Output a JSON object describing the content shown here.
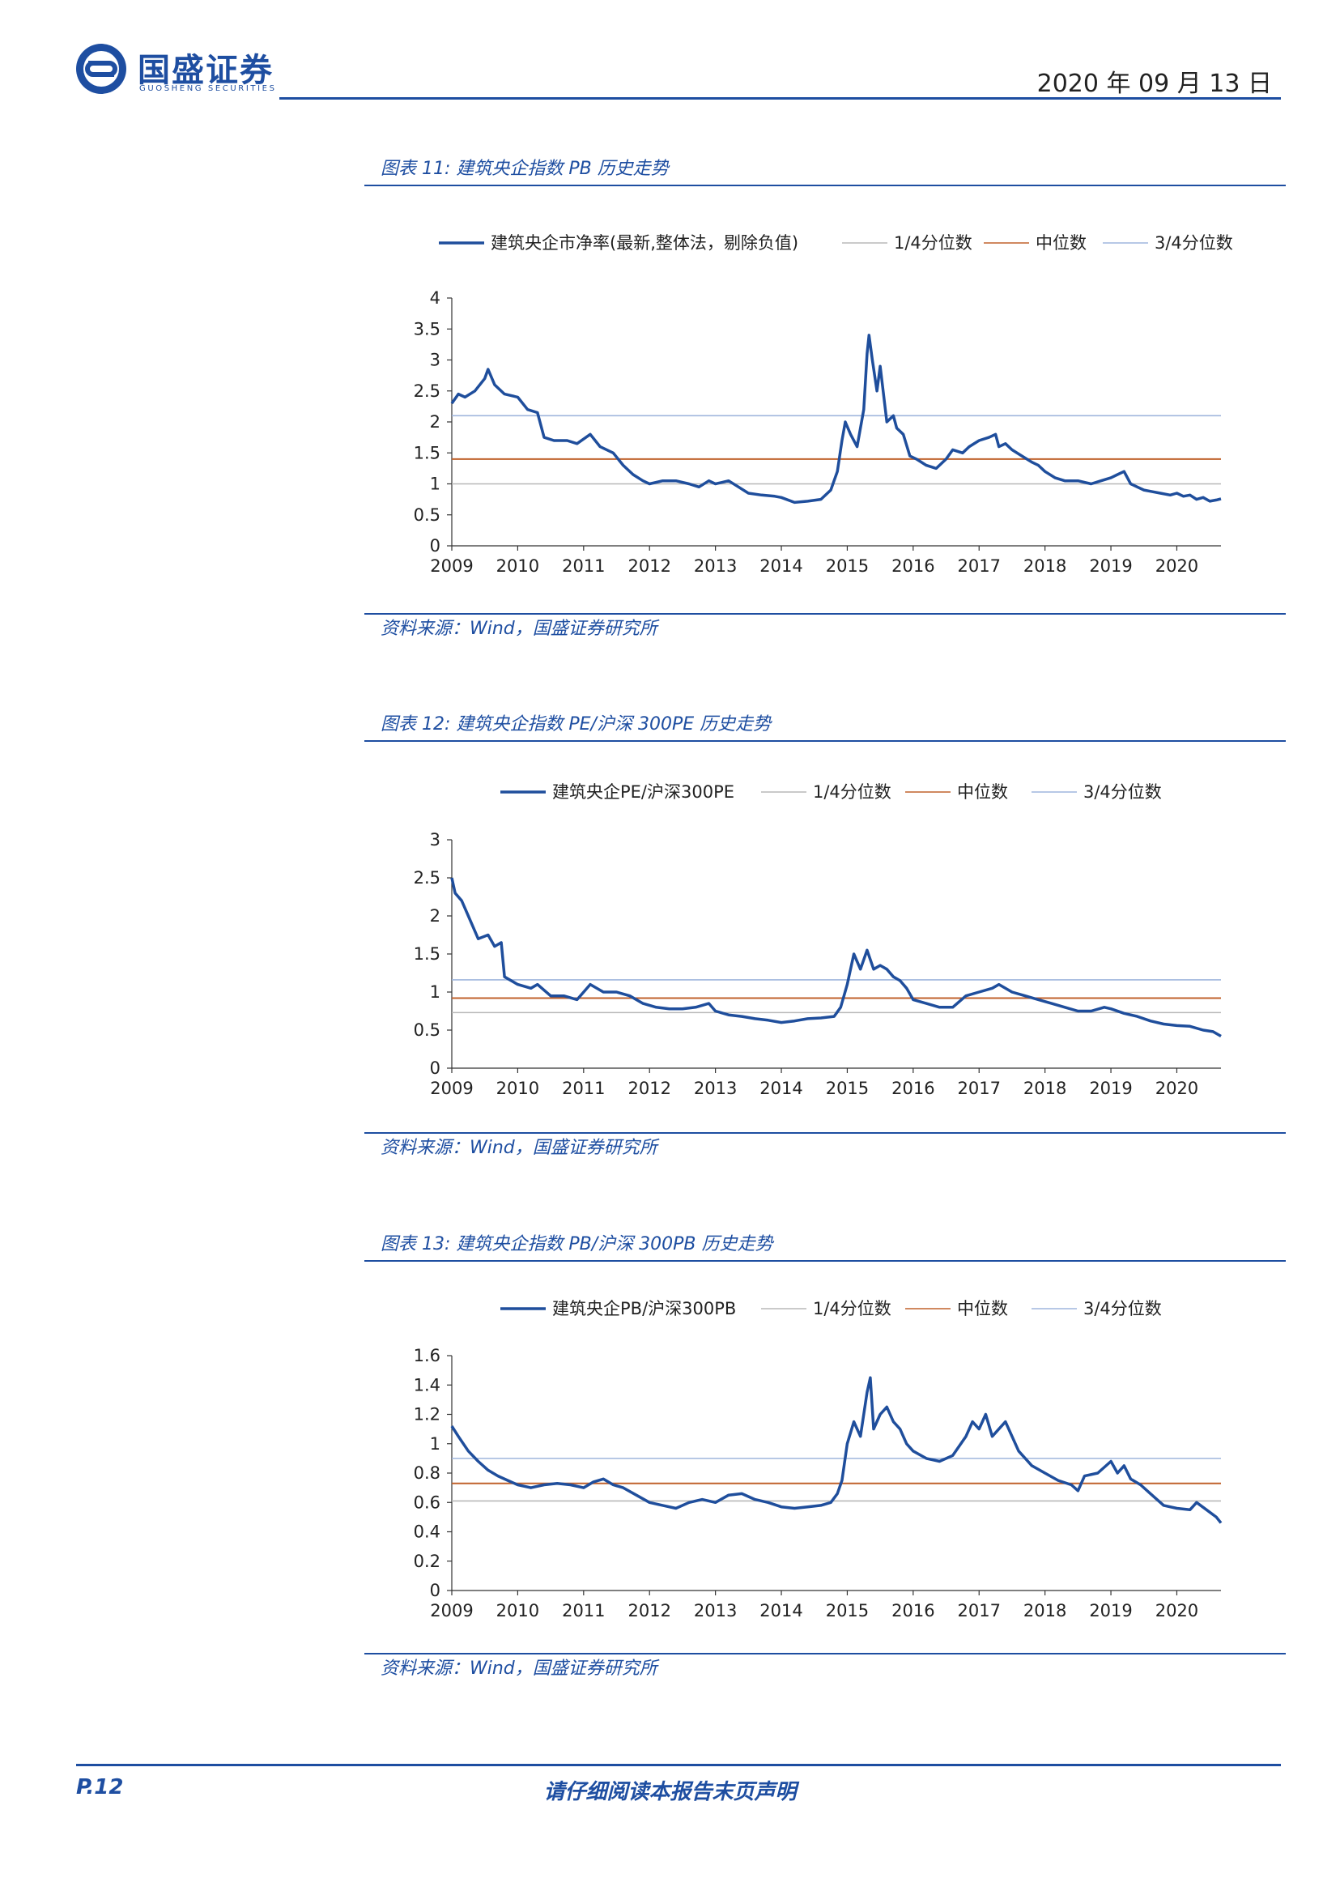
{
  "header": {
    "company_cn": "国盛证券",
    "company_en": "GUOSHENG SECURITIES",
    "date": "2020 年 09 月 13 日"
  },
  "colors": {
    "accent": "#1e4ea1",
    "series": "#1f4e9c",
    "q1": "#b8b8b8",
    "median": "#c0622c",
    "q3": "#9fb6dd"
  },
  "figures": [
    {
      "caption": "图表 11:  建筑央企指数 PB 历史走势",
      "source": "资料来源：Wind，国盛证券研究所",
      "legend": [
        "建筑央企市净率(最新,整体法，剔除负值)",
        "1/4分位数",
        "中位数",
        "3/4分位数"
      ]
    },
    {
      "caption": "图表 12:  建筑央企指数 PE/沪深 300PE 历史走势",
      "source": "资料来源：Wind，国盛证券研究所",
      "legend": [
        "建筑央企PE/沪深300PE",
        "1/4分位数",
        "中位数",
        "3/4分位数"
      ]
    },
    {
      "caption": "图表 13:  建筑央企指数 PB/沪深 300PB 历史走势",
      "source": "资料来源：Wind，国盛证券研究所",
      "legend": [
        "建筑央企PB/沪深300PB",
        "1/4分位数",
        "中位数",
        "3/4分位数"
      ]
    }
  ],
  "chart_data": [
    {
      "type": "line",
      "x_tick_labels": [
        "2009",
        "2010",
        "2011",
        "2012",
        "2013",
        "2014",
        "2015",
        "2016",
        "2017",
        "2018",
        "2019",
        "2020"
      ],
      "y_tick_labels": [
        "0",
        "0.5",
        "1",
        "1.5",
        "2",
        "2.5",
        "3",
        "3.5",
        "4"
      ],
      "ylim": [
        0,
        4
      ],
      "xlim": [
        2009.0,
        2020.67
      ],
      "series": [
        {
          "name": "建筑央企市净率(最新,整体法，剔除负值)",
          "x": [
            2009.0,
            2009.1,
            2009.2,
            2009.35,
            2009.5,
            2009.55,
            2009.65,
            2009.8,
            2010.0,
            2010.15,
            2010.3,
            2010.4,
            2010.55,
            2010.75,
            2010.9,
            2011.1,
            2011.25,
            2011.35,
            2011.45,
            2011.6,
            2011.75,
            2011.9,
            2012.0,
            2012.2,
            2012.4,
            2012.6,
            2012.75,
            2012.9,
            2013.0,
            2013.2,
            2013.35,
            2013.5,
            2013.7,
            2013.9,
            2014.0,
            2014.2,
            2014.4,
            2014.6,
            2014.75,
            2014.85,
            2014.92,
            2014.97,
            2015.05,
            2015.15,
            2015.25,
            2015.3,
            2015.33,
            2015.38,
            2015.45,
            2015.5,
            2015.6,
            2015.7,
            2015.75,
            2015.85,
            2015.95,
            2016.05,
            2016.2,
            2016.35,
            2016.5,
            2016.6,
            2016.75,
            2016.85,
            2017.0,
            2017.15,
            2017.25,
            2017.3,
            2017.4,
            2017.5,
            2017.65,
            2017.8,
            2017.9,
            2018.0,
            2018.15,
            2018.3,
            2018.5,
            2018.7,
            2018.85,
            2019.0,
            2019.1,
            2019.2,
            2019.3,
            2019.4,
            2019.5,
            2019.6,
            2019.75,
            2019.9,
            2020.0,
            2020.1,
            2020.2,
            2020.3,
            2020.4,
            2020.5,
            2020.6,
            2020.67
          ],
          "values": [
            2.3,
            2.45,
            2.4,
            2.5,
            2.7,
            2.85,
            2.6,
            2.45,
            2.4,
            2.2,
            2.15,
            1.75,
            1.7,
            1.7,
            1.65,
            1.8,
            1.6,
            1.55,
            1.5,
            1.3,
            1.15,
            1.05,
            1.0,
            1.05,
            1.05,
            1.0,
            0.95,
            1.05,
            1.0,
            1.05,
            0.95,
            0.85,
            0.82,
            0.8,
            0.78,
            0.7,
            0.72,
            0.75,
            0.9,
            1.2,
            1.7,
            2.0,
            1.8,
            1.6,
            2.2,
            3.1,
            3.4,
            3.0,
            2.5,
            2.9,
            2.0,
            2.1,
            1.9,
            1.8,
            1.45,
            1.4,
            1.3,
            1.25,
            1.4,
            1.55,
            1.5,
            1.6,
            1.7,
            1.75,
            1.8,
            1.6,
            1.65,
            1.55,
            1.45,
            1.35,
            1.3,
            1.2,
            1.1,
            1.05,
            1.05,
            1.0,
            1.05,
            1.1,
            1.15,
            1.2,
            1.0,
            0.95,
            0.9,
            0.88,
            0.85,
            0.82,
            0.85,
            0.8,
            0.82,
            0.75,
            0.78,
            0.72,
            0.74,
            0.76
          ]
        }
      ],
      "reference_lines": {
        "q1": 1.0,
        "median": 1.4,
        "q3": 2.1
      }
    },
    {
      "type": "line",
      "x_tick_labels": [
        "2009",
        "2010",
        "2011",
        "2012",
        "2013",
        "2014",
        "2015",
        "2016",
        "2017",
        "2018",
        "2019",
        "2020"
      ],
      "y_tick_labels": [
        "0",
        "0.5",
        "1",
        "1.5",
        "2",
        "2.5",
        "3"
      ],
      "ylim": [
        0,
        3
      ],
      "xlim": [
        2009.0,
        2020.67
      ],
      "series": [
        {
          "name": "建筑央企PE/沪深300PE",
          "x": [
            2009.0,
            2009.05,
            2009.15,
            2009.25,
            2009.4,
            2009.55,
            2009.65,
            2009.75,
            2009.8,
            2010.0,
            2010.2,
            2010.3,
            2010.5,
            2010.7,
            2010.9,
            2011.1,
            2011.3,
            2011.5,
            2011.7,
            2011.9,
            2012.1,
            2012.3,
            2012.5,
            2012.7,
            2012.9,
            2013.0,
            2013.2,
            2013.4,
            2013.6,
            2013.8,
            2014.0,
            2014.2,
            2014.4,
            2014.6,
            2014.8,
            2014.9,
            2015.0,
            2015.1,
            2015.2,
            2015.3,
            2015.4,
            2015.5,
            2015.6,
            2015.7,
            2015.8,
            2015.9,
            2016.0,
            2016.2,
            2016.4,
            2016.6,
            2016.8,
            2017.0,
            2017.2,
            2017.3,
            2017.5,
            2017.7,
            2017.9,
            2018.1,
            2018.3,
            2018.5,
            2018.7,
            2018.9,
            2019.0,
            2019.2,
            2019.4,
            2019.6,
            2019.8,
            2020.0,
            2020.2,
            2020.4,
            2020.55,
            2020.67
          ],
          "values": [
            2.5,
            2.3,
            2.2,
            2.0,
            1.7,
            1.75,
            1.6,
            1.65,
            1.2,
            1.1,
            1.05,
            1.1,
            0.95,
            0.95,
            0.9,
            1.1,
            1.0,
            1.0,
            0.95,
            0.85,
            0.8,
            0.78,
            0.78,
            0.8,
            0.85,
            0.75,
            0.7,
            0.68,
            0.65,
            0.63,
            0.6,
            0.62,
            0.65,
            0.66,
            0.68,
            0.8,
            1.1,
            1.5,
            1.3,
            1.55,
            1.3,
            1.35,
            1.3,
            1.2,
            1.15,
            1.05,
            0.9,
            0.85,
            0.8,
            0.8,
            0.95,
            1.0,
            1.05,
            1.1,
            1.0,
            0.95,
            0.9,
            0.85,
            0.8,
            0.75,
            0.75,
            0.8,
            0.78,
            0.72,
            0.68,
            0.62,
            0.58,
            0.56,
            0.55,
            0.5,
            0.48,
            0.42
          ]
        }
      ],
      "reference_lines": {
        "q1": 0.73,
        "median": 0.92,
        "q3": 1.16
      }
    },
    {
      "type": "line",
      "x_tick_labels": [
        "2009",
        "2010",
        "2011",
        "2012",
        "2013",
        "2014",
        "2015",
        "2016",
        "2017",
        "2018",
        "2019",
        "2020"
      ],
      "y_tick_labels": [
        "0",
        "0.2",
        "0.4",
        "0.6",
        "0.8",
        "1",
        "1.2",
        "1.4",
        "1.6"
      ],
      "ylim": [
        0,
        1.6
      ],
      "xlim": [
        2009.0,
        2020.67
      ],
      "series": [
        {
          "name": "建筑央企PB/沪深300PB",
          "x": [
            2009.0,
            2009.1,
            2009.25,
            2009.4,
            2009.55,
            2009.7,
            2009.85,
            2010.0,
            2010.2,
            2010.4,
            2010.6,
            2010.8,
            2011.0,
            2011.15,
            2011.3,
            2011.45,
            2011.6,
            2011.8,
            2012.0,
            2012.2,
            2012.4,
            2012.6,
            2012.8,
            2013.0,
            2013.2,
            2013.4,
            2013.6,
            2013.8,
            2014.0,
            2014.2,
            2014.4,
            2014.6,
            2014.75,
            2014.85,
            2014.92,
            2015.0,
            2015.1,
            2015.2,
            2015.3,
            2015.35,
            2015.4,
            2015.5,
            2015.6,
            2015.7,
            2015.8,
            2015.9,
            2016.0,
            2016.2,
            2016.4,
            2016.6,
            2016.8,
            2016.9,
            2017.0,
            2017.1,
            2017.2,
            2017.3,
            2017.4,
            2017.6,
            2017.8,
            2018.0,
            2018.2,
            2018.4,
            2018.5,
            2018.6,
            2018.8,
            2019.0,
            2019.1,
            2019.2,
            2019.3,
            2019.45,
            2019.6,
            2019.8,
            2020.0,
            2020.2,
            2020.3,
            2020.45,
            2020.6,
            2020.67
          ],
          "values": [
            1.12,
            1.05,
            0.95,
            0.88,
            0.82,
            0.78,
            0.75,
            0.72,
            0.7,
            0.72,
            0.73,
            0.72,
            0.7,
            0.74,
            0.76,
            0.72,
            0.7,
            0.65,
            0.6,
            0.58,
            0.56,
            0.6,
            0.62,
            0.6,
            0.65,
            0.66,
            0.62,
            0.6,
            0.57,
            0.56,
            0.57,
            0.58,
            0.6,
            0.66,
            0.75,
            1.0,
            1.15,
            1.05,
            1.35,
            1.45,
            1.1,
            1.2,
            1.25,
            1.15,
            1.1,
            1.0,
            0.95,
            0.9,
            0.88,
            0.92,
            1.05,
            1.15,
            1.1,
            1.2,
            1.05,
            1.1,
            1.15,
            0.95,
            0.85,
            0.8,
            0.75,
            0.72,
            0.68,
            0.78,
            0.8,
            0.88,
            0.8,
            0.85,
            0.76,
            0.72,
            0.66,
            0.58,
            0.56,
            0.55,
            0.6,
            0.55,
            0.5,
            0.46
          ]
        }
      ],
      "reference_lines": {
        "q1": 0.61,
        "median": 0.73,
        "q3": 0.9
      }
    }
  ],
  "footer": {
    "page": "P.12",
    "disclaimer": "请仔细阅读本报告末页声明"
  }
}
